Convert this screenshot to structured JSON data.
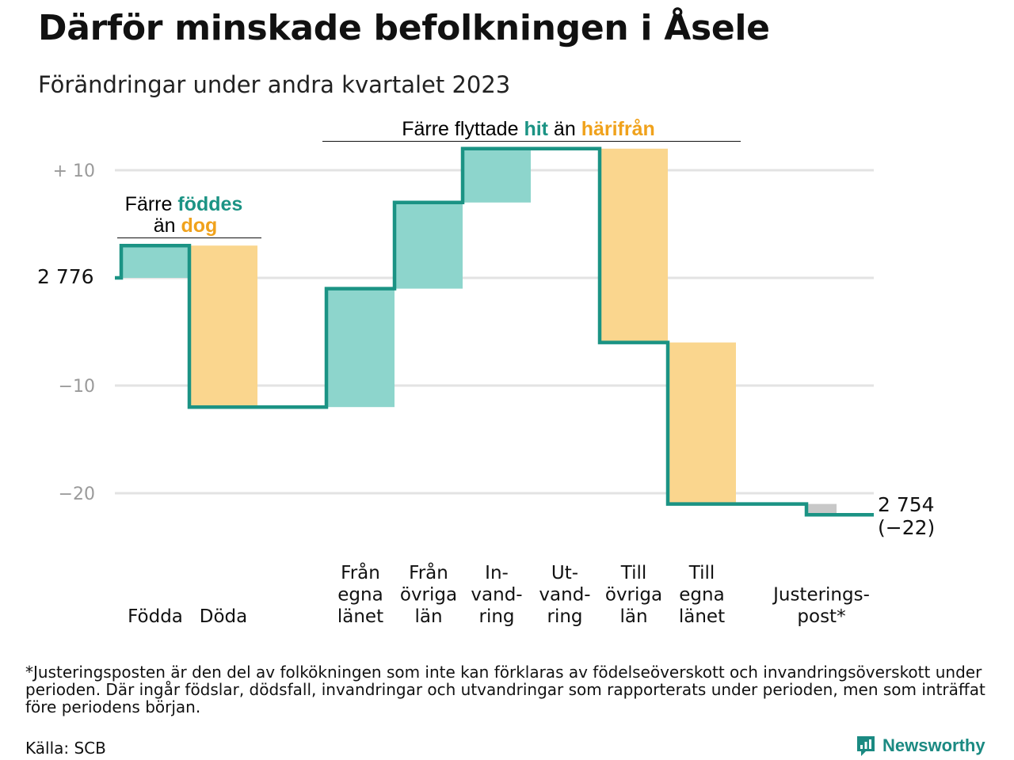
{
  "title": "Därför minskade befolkningen i Åsele",
  "subtitle": "Förändringar under andra kvartalet 2023",
  "annotations": {
    "birth_death": {
      "line1_prefix": "Färre ",
      "line1_highlight": "föddes",
      "line2_prefix": "än ",
      "line2_highlight": "dog"
    },
    "migration": {
      "prefix": "Färre flyttade ",
      "highlight1": "hit",
      "middle": " än ",
      "highlight2": "härifrån"
    }
  },
  "start_label": "2  776",
  "end_label": {
    "value": "2 754",
    "change": "(−22)"
  },
  "colors": {
    "increase": "#8dd5cc",
    "decrease": "#fad68e",
    "adjustment": "#c8c8c8",
    "line": "#1b9384",
    "teal_text": "#1b9384",
    "orange_text": "#f0a21c",
    "grid": "#e3e3e3",
    "tick": "#9a9a9a"
  },
  "chart_data": {
    "type": "waterfall",
    "title": "Därför minskade befolkningen i Åsele",
    "subtitle": "Förändringar under andra kvartalet 2023",
    "start_value": 2776,
    "end_value": 2754,
    "total_change": -22,
    "ylim": [
      -22,
      12
    ],
    "yticks": [
      {
        "value": 10,
        "label": "+  10"
      },
      {
        "value": 0,
        "label": ""
      },
      {
        "value": -10,
        "label": "−10"
      },
      {
        "value": -20,
        "label": "−20"
      }
    ],
    "grid": true,
    "steps": [
      {
        "label": [
          "Födda"
        ],
        "change": 3,
        "kind": "increase"
      },
      {
        "label": [
          "Döda"
        ],
        "change": -15,
        "kind": "decrease"
      },
      {
        "label": [
          "Från",
          "egna",
          "länet"
        ],
        "change": 11,
        "kind": "increase"
      },
      {
        "label": [
          "Från",
          "övriga",
          "län"
        ],
        "change": 8,
        "kind": "increase"
      },
      {
        "label": [
          "In-",
          "vand-",
          "ring"
        ],
        "change": 5,
        "kind": "increase"
      },
      {
        "label": [
          "Ut-",
          "vand-",
          "ring"
        ],
        "change": 0,
        "kind": "decrease"
      },
      {
        "label": [
          "Till",
          "övriga",
          "län"
        ],
        "change": -18,
        "kind": "decrease"
      },
      {
        "label": [
          "Till",
          "egna",
          "länet"
        ],
        "change": -15,
        "kind": "decrease"
      },
      {
        "label": [
          "Justerings-",
          "post*"
        ],
        "change": -1,
        "kind": "adjustment"
      }
    ]
  },
  "footnote": "*Justeringsposten är den del av folkökningen som inte kan förklaras av födelseöverskott och invandringsöverskott under perioden. Där ingår födslar, dödsfall, invandringar och utvandringar som rapporterats under perioden, men som inträffat före periodens början.",
  "source": "Källa: SCB",
  "brand": {
    "name": "Newsworthy",
    "icon": "newsworthy-logo-icon"
  }
}
